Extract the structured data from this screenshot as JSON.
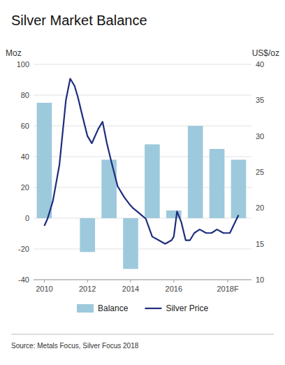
{
  "chart_data": {
    "type": "bar",
    "title": "Silver Market Balance",
    "y_label": "Moz",
    "y2_label": "US$/oz",
    "annotation": "Source: Metals Focus, Silver Focus 2018",
    "xlim": [
      2009.5,
      2019.6
    ],
    "xticks": [
      2010,
      2012,
      2014,
      2016,
      {
        "value": 2018.5,
        "label": "2018F"
      }
    ],
    "ylim": [
      -40,
      100
    ],
    "yticks": [
      -40,
      -20,
      0,
      20,
      40,
      60,
      80,
      100
    ],
    "y2lim": [
      10,
      40
    ],
    "y2ticks": [
      10,
      15,
      20,
      25,
      30,
      35,
      40
    ],
    "grid": true,
    "legend": "bottom",
    "series": [
      {
        "name": "Balance",
        "type": "bar",
        "color": "#9dc9dc",
        "x": [
          2010,
          2011,
          2012,
          2013,
          2014,
          2015,
          2016,
          2017,
          2018,
          2019
        ],
        "values": [
          75,
          0,
          -22,
          38,
          -33,
          48,
          5,
          60,
          45,
          38
        ]
      },
      {
        "name": "Silver Price",
        "type": "line",
        "axis": "y2",
        "color": "#1f2d7e",
        "x": [
          2010.0,
          2010.15,
          2010.4,
          2010.7,
          2011.0,
          2011.2,
          2011.4,
          2011.55,
          2011.75,
          2012.0,
          2012.2,
          2012.5,
          2012.7,
          2012.9,
          2013.1,
          2013.4,
          2013.7,
          2013.95,
          2014.1,
          2014.3,
          2014.5,
          2014.7,
          2015.0,
          2015.3,
          2015.6,
          2015.9,
          2016.0,
          2016.15,
          2016.35,
          2016.55,
          2016.75,
          2016.95,
          2017.2,
          2017.5,
          2017.75,
          2018.0,
          2018.3,
          2018.6,
          2019.0
        ],
        "values": [
          17.5,
          18.5,
          21,
          26,
          35,
          38,
          37,
          35.5,
          33,
          30,
          29,
          31,
          32,
          29,
          26.5,
          23,
          21.5,
          20.5,
          20,
          19.5,
          19,
          18.5,
          16,
          15.5,
          15,
          15.5,
          16,
          19.5,
          18,
          15.5,
          15.5,
          16.5,
          17,
          16.5,
          16.5,
          17,
          16.5,
          16.5,
          19
        ]
      }
    ]
  }
}
